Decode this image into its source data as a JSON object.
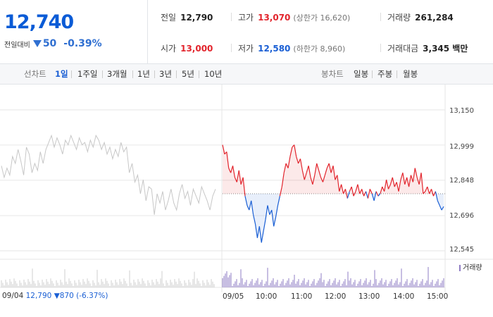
{
  "quote": {
    "price": "12,740",
    "change_label": "전일대비",
    "change_value": "50",
    "change_pct": "-0.39%"
  },
  "stats": {
    "prev_close_label": "전일",
    "prev_close": "12,790",
    "high_label": "고가",
    "high": "13,070",
    "upper_limit": "(상한가 16,620)",
    "volume_label": "거래량",
    "volume": "261,284",
    "open_label": "시가",
    "open": "13,000",
    "low_label": "저가",
    "low": "12,580",
    "lower_limit": "(하한가 8,960)",
    "amount_label": "거래대금",
    "amount": "3,345 백만"
  },
  "line_tabs": {
    "label": "선차트",
    "items": [
      "1일",
      "1주일",
      "3개월",
      "1년",
      "3년",
      "5년",
      "10년"
    ],
    "active": "1일"
  },
  "candle_tabs": {
    "label": "봉차트",
    "items": [
      "일봉",
      "주봉",
      "월봉"
    ]
  },
  "chart_data": {
    "type": "line",
    "ylim": [
      12545,
      13150
    ],
    "yticks": [
      "13,150",
      "12,999",
      "12,848",
      "12,696",
      "12,545"
    ],
    "ytick_values": [
      13150,
      12999,
      12848,
      12696,
      12545
    ],
    "baseline": 12790,
    "xticks": [
      "09/04",
      "09/05",
      "10:00",
      "11:00",
      "12:00",
      "13:00",
      "14:00",
      "15:00"
    ],
    "prev_day_series": [
      12910,
      12860,
      12900,
      12870,
      12950,
      12920,
      12980,
      12930,
      12870,
      12990,
      12960,
      12880,
      12920,
      12890,
      12970,
      12920,
      12980,
      13010,
      13040,
      12990,
      13030,
      13000,
      12960,
      13020,
      13000,
      13040,
      13010,
      12980,
      13030,
      13000,
      13010,
      12970,
      13020,
      12990,
      13040,
      13020,
      12980,
      13010,
      12960,
      12990,
      12940,
      12980,
      12950,
      13010,
      12970,
      12990,
      12880,
      12920,
      12840,
      12870,
      12790,
      12850,
      12760,
      12820,
      12810,
      12700,
      12790,
      12750,
      12800,
      12720,
      12760,
      12810,
      12750,
      12720,
      12790,
      12830,
      12770,
      12800,
      12740,
      12810,
      12780,
      12750,
      12820,
      12790,
      12760,
      12720,
      12780,
      12810
    ],
    "today_series": [
      13000,
      12960,
      12970,
      12900,
      12880,
      12910,
      12860,
      12840,
      12890,
      12830,
      12860,
      12780,
      12740,
      12720,
      12760,
      12700,
      12660,
      12600,
      12650,
      12580,
      12630,
      12680,
      12740,
      12700,
      12720,
      12650,
      12690,
      12740,
      12780,
      12820,
      12880,
      12920,
      12900,
      12950,
      12990,
      13000,
      12950,
      12920,
      12940,
      12890,
      12850,
      12880,
      12910,
      12860,
      12830,
      12870,
      12920,
      12890,
      12860,
      12840,
      12870,
      12900,
      12920,
      12880,
      12910,
      12850,
      12870,
      12800,
      12830,
      12790,
      12810,
      12770,
      12800,
      12820,
      12780,
      12800,
      12830,
      12790,
      12810,
      12780,
      12800,
      12770,
      12810,
      12790,
      12760,
      12800,
      12780,
      12790,
      12820,
      12800,
      12850,
      12810,
      12830,
      12860,
      12820,
      12840,
      12800,
      12850,
      12880,
      12830,
      12860,
      12820,
      12870,
      12840,
      12900,
      12860,
      12830,
      12880,
      12790,
      12800,
      12820,
      12790,
      12810,
      12780,
      12800,
      12760,
      12740,
      12720,
      12735
    ],
    "volume_label": "거래량"
  },
  "footer": {
    "date": "09/04",
    "price": "12,790",
    "change": "▼870",
    "pct": "(-6.37%)"
  },
  "colors": {
    "up": "#e2242c",
    "down": "#1a5fd4",
    "prev": "#c7c7c7",
    "volume": "#8f7cc4"
  }
}
